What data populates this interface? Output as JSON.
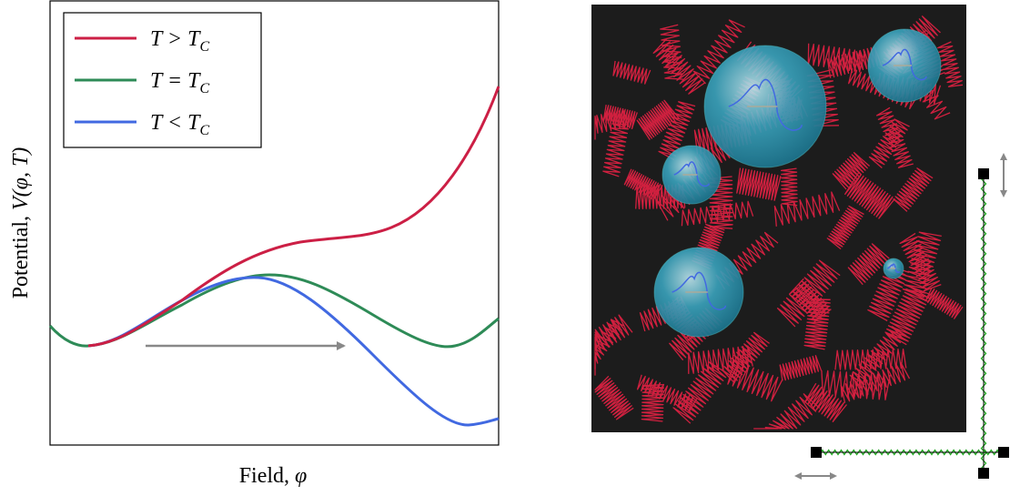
{
  "plot": {
    "y_label": {
      "text": "Potential, ",
      "math": "V(φ, T)"
    },
    "x_label": {
      "text": "Field, ",
      "math": "φ"
    },
    "legend": [
      {
        "main": "T > T",
        "sub": "C"
      },
      {
        "main": "T = T",
        "sub": "C"
      },
      {
        "main": "T < T",
        "sub": "C"
      }
    ]
  }
}
